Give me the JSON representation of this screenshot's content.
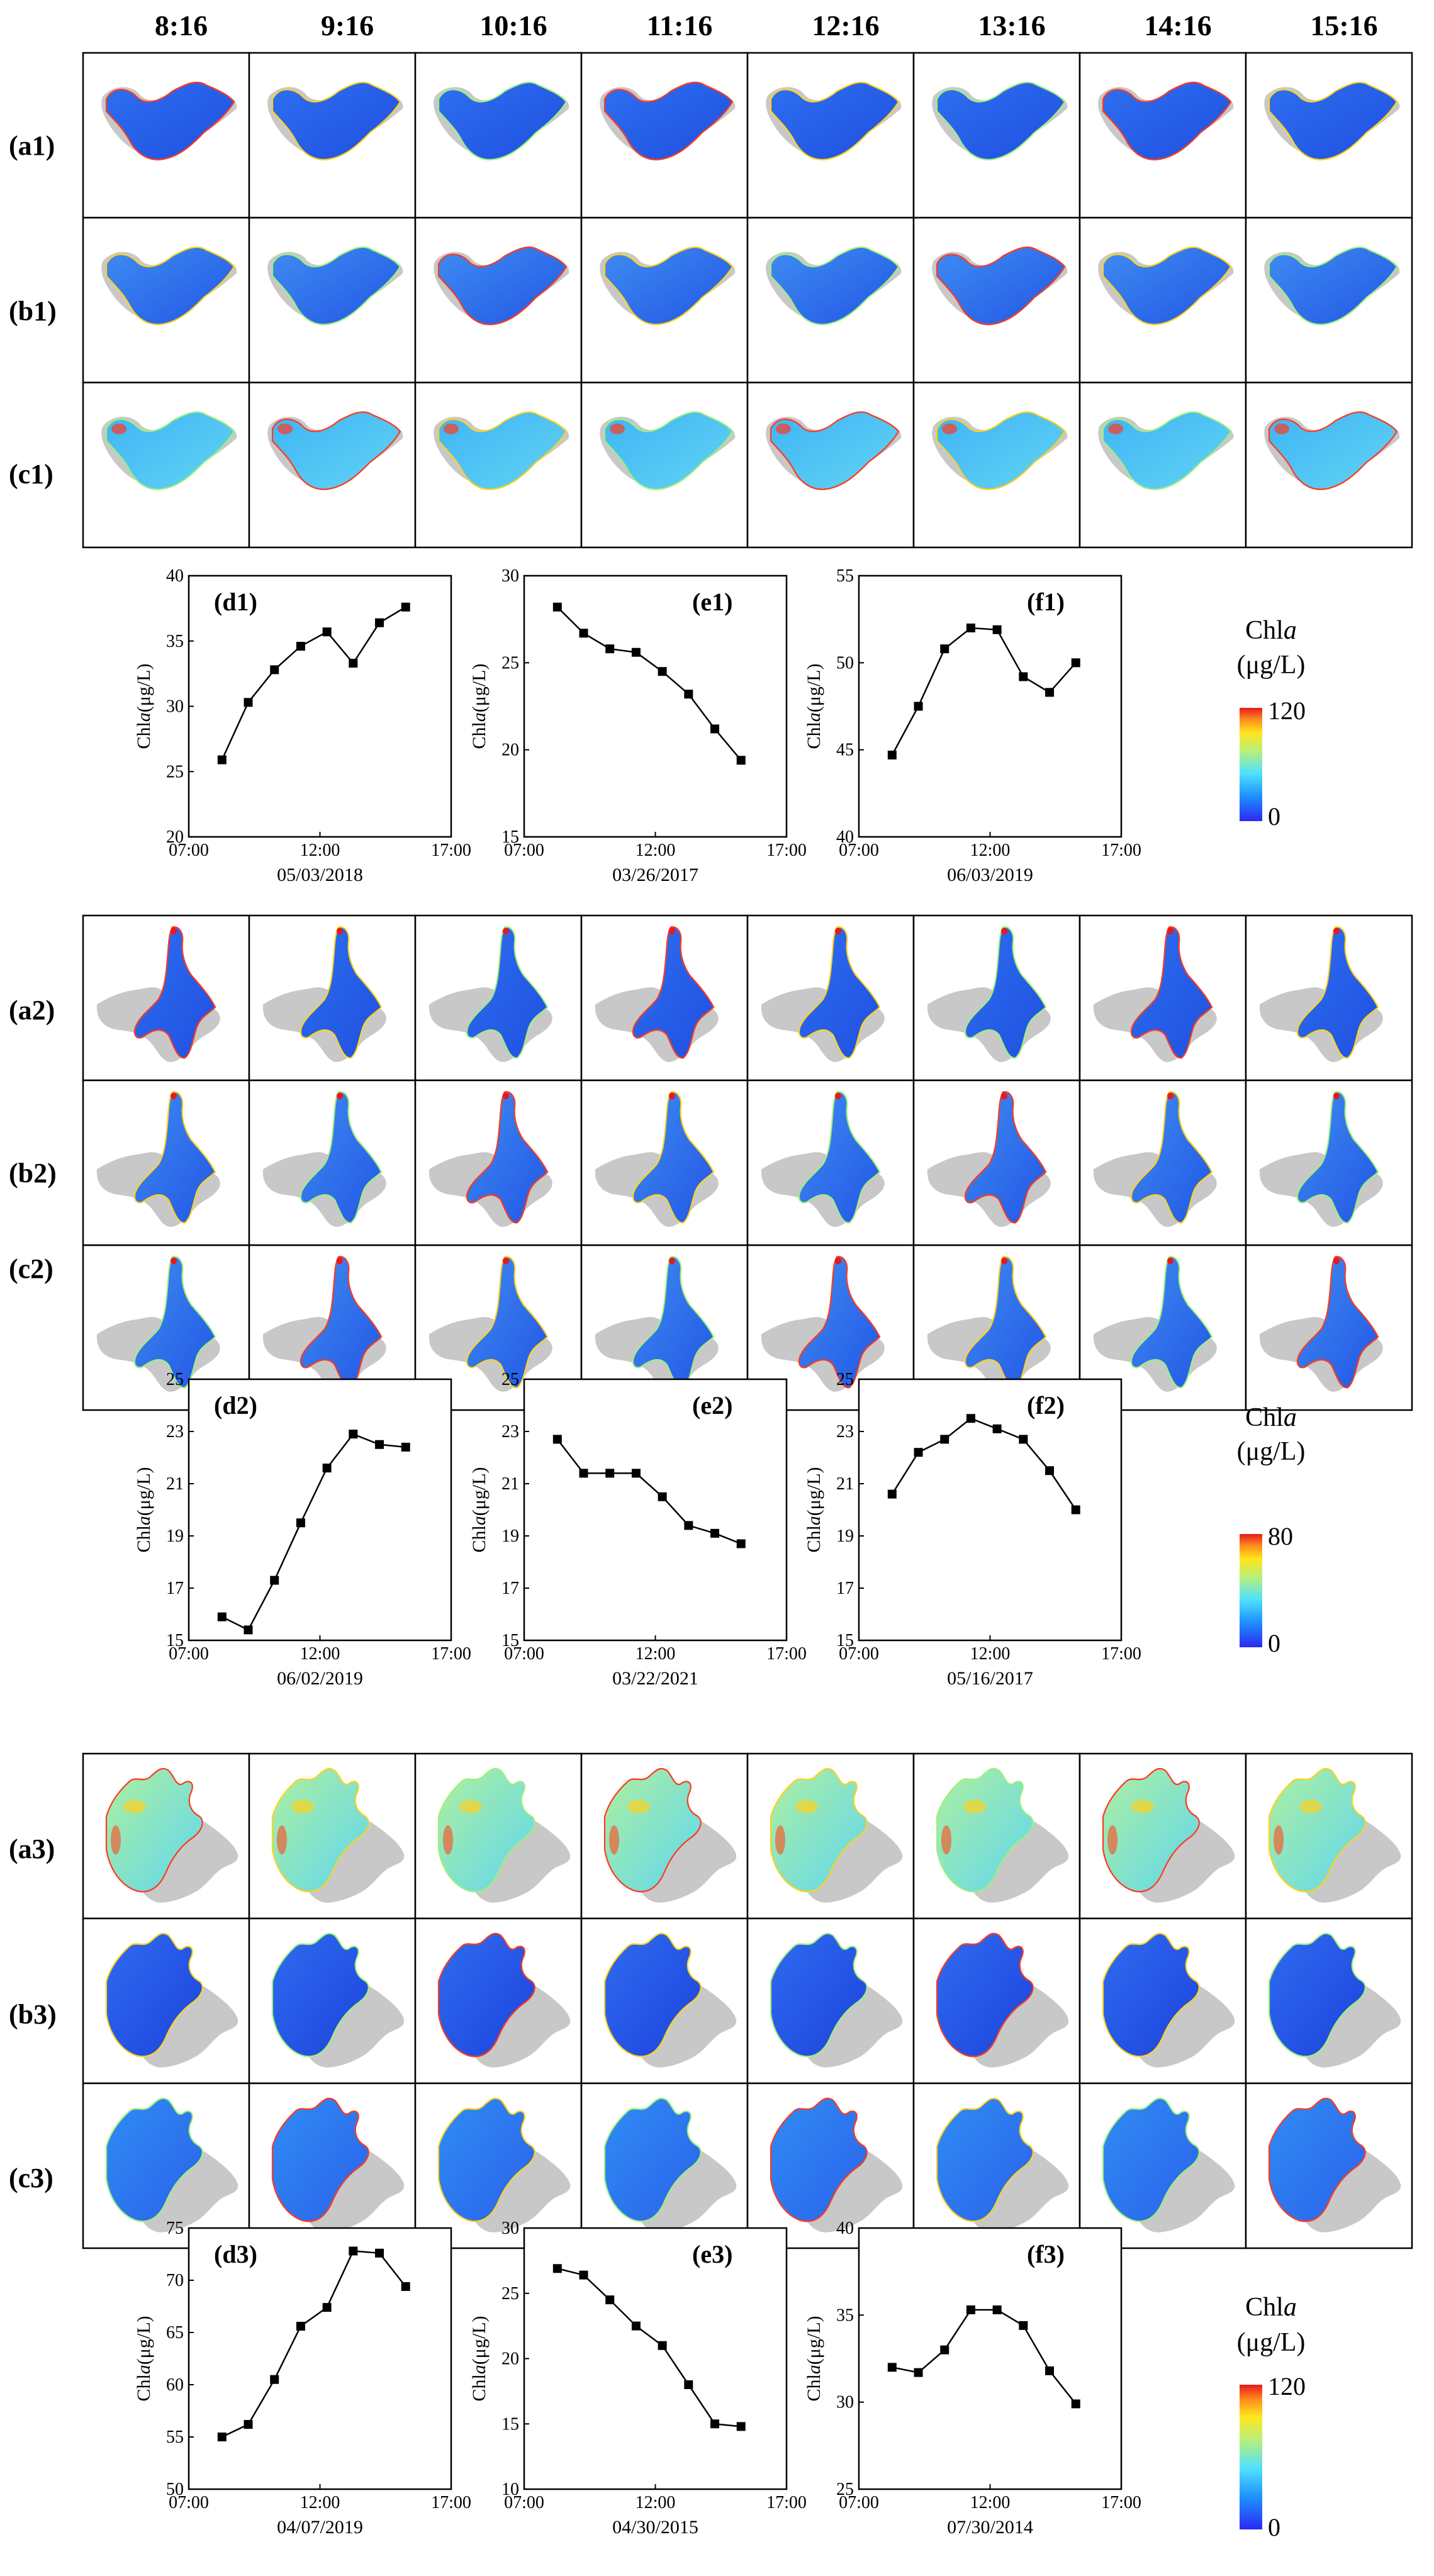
{
  "time_headers": [
    "8:16",
    "9:16",
    "10:16",
    "11:16",
    "12:16",
    "13:16",
    "14:16",
    "15:16"
  ],
  "groups": [
    {
      "map_rows": [
        "(a1)",
        "(b1)",
        "(c1)"
      ],
      "colorbar": {
        "title_main": "Chl",
        "title_italic": "a",
        "units": "(μg/L)",
        "max_label": "120",
        "min_label": "0"
      },
      "charts": [
        {
          "panel_label": "(d1)",
          "date": "05/03/2018",
          "ylabel_main": "Chl",
          "ylabel_italic": "a",
          "ylabel_units": "(μg/L)",
          "ylim": [
            20,
            40
          ],
          "yticks": [
            "20",
            "25",
            "30",
            "35",
            "40"
          ]
        },
        {
          "panel_label": "(e1)",
          "date": "03/26/2017",
          "ylabel_main": "Chl",
          "ylabel_italic": "a",
          "ylabel_units": "(μg/L)",
          "ylim": [
            15,
            30
          ],
          "yticks": [
            "15",
            "20",
            "25",
            "30"
          ]
        },
        {
          "panel_label": "(f1)",
          "date": "06/03/2019",
          "ylabel_main": "Chl",
          "ylabel_italic": "a",
          "ylabel_units": "(μg/L)",
          "ylim": [
            40,
            55
          ],
          "yticks": [
            "40",
            "45",
            "50",
            "55"
          ]
        }
      ]
    },
    {
      "map_rows": [
        "(a2)",
        "(b2)",
        "(c2)"
      ],
      "colorbar": {
        "title_main": "Chl",
        "title_italic": "a",
        "units": "(μg/L)",
        "max_label": "80",
        "min_label": "0"
      },
      "charts": [
        {
          "panel_label": "(d2)",
          "date": "06/02/2019",
          "ylabel_main": "Chl",
          "ylabel_italic": "a",
          "ylabel_units": "(μg/L)",
          "ylim": [
            15,
            25
          ],
          "yticks": [
            "15",
            "17",
            "19",
            "21",
            "23",
            "25"
          ]
        },
        {
          "panel_label": "(e2)",
          "date": "03/22/2021",
          "ylabel_main": "Chl",
          "ylabel_italic": "a",
          "ylabel_units": "(μg/L)",
          "ylim": [
            15,
            25
          ],
          "yticks": [
            "15",
            "17",
            "19",
            "21",
            "23",
            "25"
          ]
        },
        {
          "panel_label": "(f2)",
          "date": "05/16/2017",
          "ylabel_main": "Chl",
          "ylabel_italic": "a",
          "ylabel_units": "(μg/L)",
          "ylim": [
            15,
            25
          ],
          "yticks": [
            "15",
            "17",
            "19",
            "21",
            "23",
            "25"
          ]
        }
      ]
    },
    {
      "map_rows": [
        "(a3)",
        "(b3)",
        "(c3)"
      ],
      "colorbar": {
        "title_main": "Chl",
        "title_italic": "a",
        "units": "(μg/L)",
        "max_label": "120",
        "min_label": "0"
      },
      "charts": [
        {
          "panel_label": "(d3)",
          "date": "04/07/2019",
          "ylabel_main": "Chl",
          "ylabel_italic": "a",
          "ylabel_units": "(μg/L)",
          "ylim": [
            50,
            75
          ],
          "yticks": [
            "50",
            "55",
            "60",
            "65",
            "70",
            "75"
          ]
        },
        {
          "panel_label": "(e3)",
          "date": "04/30/2015",
          "ylabel_main": "Chl",
          "ylabel_italic": "a",
          "ylabel_units": "(μg/L)",
          "ylim": [
            10,
            30
          ],
          "yticks": [
            "10",
            "15",
            "20",
            "25",
            "30"
          ]
        },
        {
          "panel_label": "(f3)",
          "date": "07/30/2014",
          "ylabel_main": "Chl",
          "ylabel_italic": "a",
          "ylabel_units": "(μg/L)",
          "ylim": [
            25,
            40
          ],
          "yticks": [
            "25",
            "30",
            "35",
            "40"
          ]
        }
      ]
    }
  ],
  "chart_data": [
    {
      "type": "line",
      "title": "(d1)",
      "xlabel": "05/03/2018",
      "ylabel": "Chla(μg/L)",
      "xlim": [
        "07:00",
        "17:00"
      ],
      "xticks": [
        "07:00",
        "12:00",
        "17:00"
      ],
      "ylim": [
        20,
        40
      ],
      "x": [
        "08:16",
        "09:16",
        "10:16",
        "11:16",
        "12:16",
        "13:16",
        "14:16",
        "15:16"
      ],
      "values": [
        25.9,
        30.3,
        32.8,
        34.6,
        35.7,
        33.3,
        36.4,
        37.6
      ]
    },
    {
      "type": "line",
      "title": "(e1)",
      "xlabel": "03/26/2017",
      "ylabel": "Chla(μg/L)",
      "xlim": [
        "07:00",
        "17:00"
      ],
      "xticks": [
        "07:00",
        "12:00",
        "17:00"
      ],
      "ylim": [
        15,
        30
      ],
      "x": [
        "08:16",
        "09:16",
        "10:16",
        "11:16",
        "12:16",
        "13:16",
        "14:16",
        "15:16"
      ],
      "values": [
        28.2,
        26.7,
        25.8,
        25.6,
        24.5,
        23.2,
        21.2,
        19.4
      ]
    },
    {
      "type": "line",
      "title": "(f1)",
      "xlabel": "06/03/2019",
      "ylabel": "Chla(μg/L)",
      "xlim": [
        "07:00",
        "17:00"
      ],
      "xticks": [
        "07:00",
        "12:00",
        "17:00"
      ],
      "ylim": [
        40,
        55
      ],
      "x": [
        "08:16",
        "09:16",
        "10:16",
        "11:16",
        "12:16",
        "13:16",
        "14:16",
        "15:16"
      ],
      "values": [
        44.7,
        47.5,
        50.8,
        52.0,
        51.9,
        49.2,
        48.3,
        50.0
      ]
    },
    {
      "type": "line",
      "title": "(d2)",
      "xlabel": "06/02/2019",
      "ylabel": "Chla(μg/L)",
      "xlim": [
        "07:00",
        "17:00"
      ],
      "xticks": [
        "07:00",
        "12:00",
        "17:00"
      ],
      "ylim": [
        15,
        25
      ],
      "x": [
        "08:16",
        "09:16",
        "10:16",
        "11:16",
        "12:16",
        "13:16",
        "14:16",
        "15:16"
      ],
      "values": [
        15.9,
        15.4,
        17.3,
        19.5,
        21.6,
        22.9,
        22.5,
        22.4
      ]
    },
    {
      "type": "line",
      "title": "(e2)",
      "xlabel": "03/22/2021",
      "ylabel": "Chla(μg/L)",
      "xlim": [
        "07:00",
        "17:00"
      ],
      "xticks": [
        "07:00",
        "12:00",
        "17:00"
      ],
      "ylim": [
        15,
        25
      ],
      "x": [
        "08:16",
        "09:16",
        "10:16",
        "11:16",
        "12:16",
        "13:16",
        "14:16",
        "15:16"
      ],
      "values": [
        22.7,
        21.4,
        21.4,
        21.4,
        20.5,
        19.4,
        19.1,
        18.7
      ]
    },
    {
      "type": "line",
      "title": "(f2)",
      "xlabel": "05/16/2017",
      "ylabel": "Chla(μg/L)",
      "xlim": [
        "07:00",
        "17:00"
      ],
      "xticks": [
        "07:00",
        "12:00",
        "17:00"
      ],
      "ylim": [
        15,
        25
      ],
      "x": [
        "08:16",
        "09:16",
        "10:16",
        "11:16",
        "12:16",
        "13:16",
        "14:16",
        "15:16"
      ],
      "values": [
        20.6,
        22.2,
        22.7,
        23.5,
        23.1,
        22.7,
        21.5,
        20.0
      ]
    },
    {
      "type": "line",
      "title": "(d3)",
      "xlabel": "04/07/2019",
      "ylabel": "Chla(μg/L)",
      "xlim": [
        "07:00",
        "17:00"
      ],
      "xticks": [
        "07:00",
        "12:00",
        "17:00"
      ],
      "ylim": [
        50,
        75
      ],
      "x": [
        "08:16",
        "09:16",
        "10:16",
        "11:16",
        "12:16",
        "13:16",
        "14:16",
        "15:16"
      ],
      "values": [
        55.0,
        56.2,
        60.5,
        65.6,
        67.4,
        72.8,
        72.6,
        69.4
      ]
    },
    {
      "type": "line",
      "title": "(e3)",
      "xlabel": "04/30/2015",
      "ylabel": "Chla(μg/L)",
      "xlim": [
        "07:00",
        "17:00"
      ],
      "xticks": [
        "07:00",
        "12:00",
        "17:00"
      ],
      "ylim": [
        10,
        30
      ],
      "x": [
        "08:16",
        "09:16",
        "10:16",
        "11:16",
        "12:16",
        "13:16",
        "14:16",
        "15:16"
      ],
      "values": [
        26.9,
        26.4,
        24.5,
        22.5,
        21.0,
        18.0,
        15.0,
        14.8
      ]
    },
    {
      "type": "line",
      "title": "(f3)",
      "xlabel": "07/30/2014",
      "ylabel": "Chla(μg/L)",
      "xlim": [
        "07:00",
        "17:00"
      ],
      "xticks": [
        "07:00",
        "12:00",
        "17:00"
      ],
      "ylim": [
        25,
        40
      ],
      "x": [
        "08:16",
        "09:16",
        "10:16",
        "11:16",
        "12:16",
        "13:16",
        "14:16",
        "15:16"
      ],
      "values": [
        32.0,
        31.7,
        33.0,
        35.3,
        35.3,
        34.4,
        31.8,
        29.9
      ]
    }
  ],
  "colors": {
    "lake_gray": "#c8c8c8",
    "line": "#000000",
    "cb_low": "#2d2df5",
    "cb_high": "#e81e1e"
  }
}
